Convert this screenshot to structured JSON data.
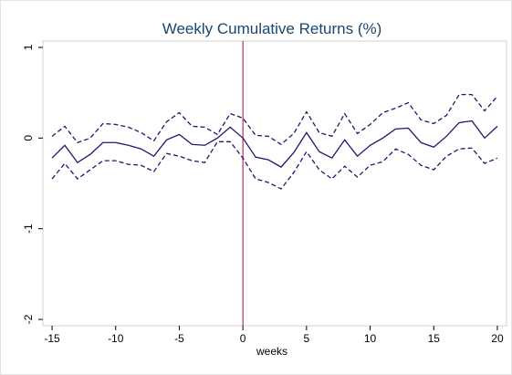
{
  "chart_data": {
    "type": "line",
    "title": "Weekly Cumulative Returns (%)",
    "x_label": "weeks",
    "x": [
      -15,
      -14,
      -13,
      -12,
      -11,
      -10,
      -9,
      -8,
      -7,
      -6,
      -5,
      -4,
      -3,
      -2,
      -1,
      0,
      1,
      2,
      3,
      4,
      5,
      6,
      7,
      8,
      9,
      10,
      11,
      12,
      13,
      14,
      15,
      16,
      17,
      18,
      19,
      20
    ],
    "series": [
      {
        "color": "#1a1a6e",
        "dash": false,
        "values": [
          -0.22,
          -0.08,
          -0.27,
          -0.18,
          -0.05,
          -0.05,
          -0.08,
          -0.12,
          -0.2,
          -0.02,
          0.04,
          -0.07,
          -0.08,
          0.0,
          0.12,
          0.0,
          -0.21,
          -0.24,
          -0.32,
          -0.16,
          0.06,
          -0.15,
          -0.22,
          -0.02,
          -0.2,
          -0.08,
          0.0,
          0.1,
          0.11,
          -0.05,
          -0.1,
          0.02,
          0.17,
          0.19,
          0.0,
          0.13
        ]
      },
      {
        "color": "#1a1a6e",
        "dash": true,
        "values": [
          0.02,
          0.13,
          -0.05,
          0.0,
          0.16,
          0.15,
          0.12,
          0.06,
          -0.03,
          0.18,
          0.28,
          0.13,
          0.12,
          0.04,
          0.27,
          0.22,
          0.03,
          0.02,
          -0.07,
          0.05,
          0.29,
          0.06,
          0.02,
          0.27,
          0.05,
          0.15,
          0.28,
          0.33,
          0.39,
          0.2,
          0.16,
          0.25,
          0.48,
          0.48,
          0.3,
          0.46
        ]
      },
      {
        "color": "#1a1a6e",
        "dash": true,
        "values": [
          -0.45,
          -0.28,
          -0.45,
          -0.35,
          -0.25,
          -0.25,
          -0.29,
          -0.3,
          -0.37,
          -0.17,
          -0.2,
          -0.25,
          -0.27,
          -0.04,
          -0.04,
          -0.22,
          -0.45,
          -0.49,
          -0.56,
          -0.38,
          -0.15,
          -0.35,
          -0.45,
          -0.31,
          -0.43,
          -0.3,
          -0.26,
          -0.12,
          -0.18,
          -0.3,
          -0.35,
          -0.2,
          -0.12,
          -0.11,
          -0.28,
          -0.22
        ]
      }
    ],
    "vline": 0,
    "vline_color": "#b0003a",
    "xlim": [
      -15.72,
      20.72
    ],
    "xticks": [
      -15,
      -10,
      -5,
      0,
      5,
      10,
      15,
      20
    ],
    "ylim": [
      -2.07,
      1.07
    ],
    "yticks": [
      -2,
      -1,
      0,
      1
    ]
  }
}
